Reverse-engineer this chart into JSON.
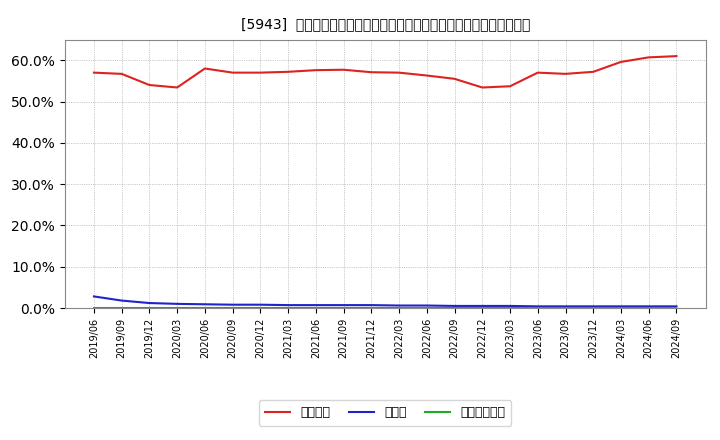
{
  "title": "[5943]  自己資本、のれん、繰延税金資産の総資産に対する比率の推移",
  "x_labels": [
    "2019/06",
    "2019/09",
    "2019/12",
    "2020/03",
    "2020/06",
    "2020/09",
    "2020/12",
    "2021/03",
    "2021/06",
    "2021/09",
    "2021/12",
    "2022/03",
    "2022/06",
    "2022/09",
    "2022/12",
    "2023/03",
    "2023/06",
    "2023/09",
    "2023/12",
    "2024/03",
    "2024/06",
    "2024/09"
  ],
  "equity_ratio": [
    0.57,
    0.567,
    0.54,
    0.534,
    0.58,
    0.57,
    0.57,
    0.572,
    0.576,
    0.577,
    0.571,
    0.57,
    0.563,
    0.555,
    0.534,
    0.537,
    0.57,
    0.567,
    0.572,
    0.596,
    0.607,
    0.61
  ],
  "goodwill_ratio": [
    0.028,
    0.018,
    0.012,
    0.01,
    0.009,
    0.008,
    0.008,
    0.007,
    0.007,
    0.007,
    0.007,
    0.006,
    0.006,
    0.005,
    0.005,
    0.005,
    0.004,
    0.004,
    0.004,
    0.004,
    0.004,
    0.004
  ],
  "deferred_tax_ratio": [
    0.001,
    0.001,
    0.001,
    0.001,
    0.001,
    0.001,
    0.001,
    0.001,
    0.001,
    0.001,
    0.001,
    0.001,
    0.001,
    0.001,
    0.001,
    0.001,
    0.001,
    0.001,
    0.001,
    0.001,
    0.001,
    0.001
  ],
  "equity_color": "#dd2222",
  "goodwill_color": "#2222cc",
  "deferred_tax_color": "#22aa22",
  "bg_color": "#ffffff",
  "plot_bg_color": "#ffffff",
  "grid_color": "#999999",
  "legend_label_equity": "自己資本",
  "legend_label_goodwill": "のれん",
  "legend_label_deferred": "繰延税金資産",
  "ylim": [
    0.0,
    0.65
  ],
  "yticks": [
    0.0,
    0.1,
    0.2,
    0.3,
    0.4,
    0.5,
    0.6
  ]
}
